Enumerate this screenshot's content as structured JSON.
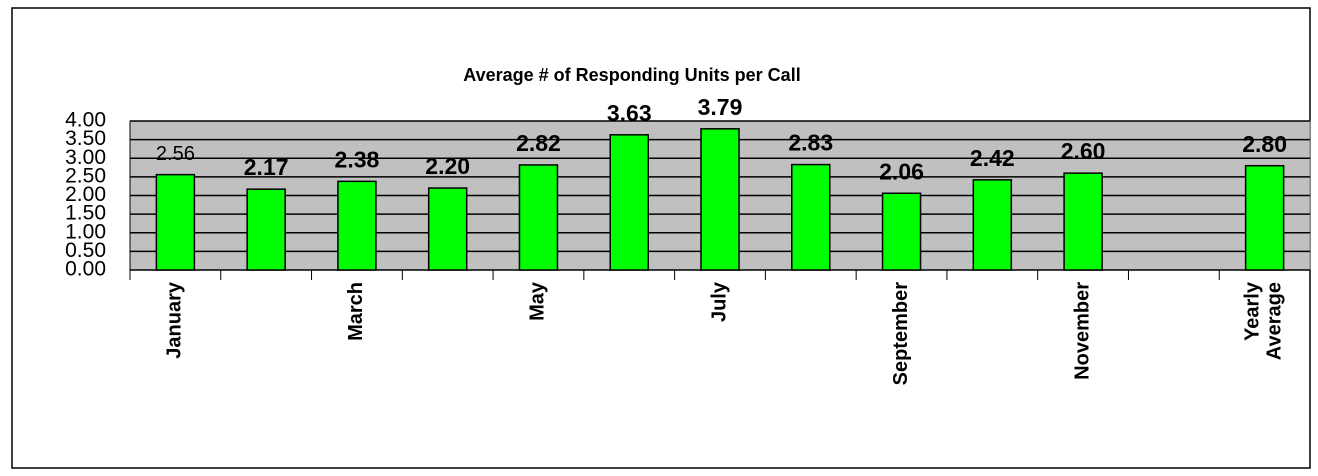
{
  "chart_data": {
    "type": "bar",
    "title": "Average # of Responding Units per Call",
    "categories": [
      "January",
      null,
      "March",
      null,
      "May",
      null,
      "July",
      null,
      "September",
      null,
      "November",
      null,
      "Yearly Average"
    ],
    "values": [
      2.56,
      2.17,
      2.38,
      2.2,
      2.82,
      3.63,
      3.79,
      2.83,
      2.06,
      2.42,
      2.6,
      null,
      2.8
    ],
    "value_labels": [
      "2.56",
      "2.17",
      "2.38",
      "2.20",
      "2.82",
      "3.63",
      "3.79",
      "2.83",
      "2.06",
      "2.42",
      "2.60",
      null,
      "2.80"
    ],
    "color": "#00ff00",
    "ylim": [
      0,
      4
    ],
    "yticks": [
      {
        "value": 0,
        "label": "0.00"
      },
      {
        "value": 0.5,
        "label": "0.50"
      },
      {
        "value": 1,
        "label": "1.00"
      },
      {
        "value": 1.5,
        "label": "1.50"
      },
      {
        "value": 2,
        "label": "2.00"
      },
      {
        "value": 2.5,
        "label": "2.50"
      },
      {
        "value": 3,
        "label": "3.00"
      },
      {
        "value": 3.5,
        "label": "3.50"
      },
      {
        "value": 4,
        "label": "4.00"
      }
    ],
    "grid": true
  }
}
